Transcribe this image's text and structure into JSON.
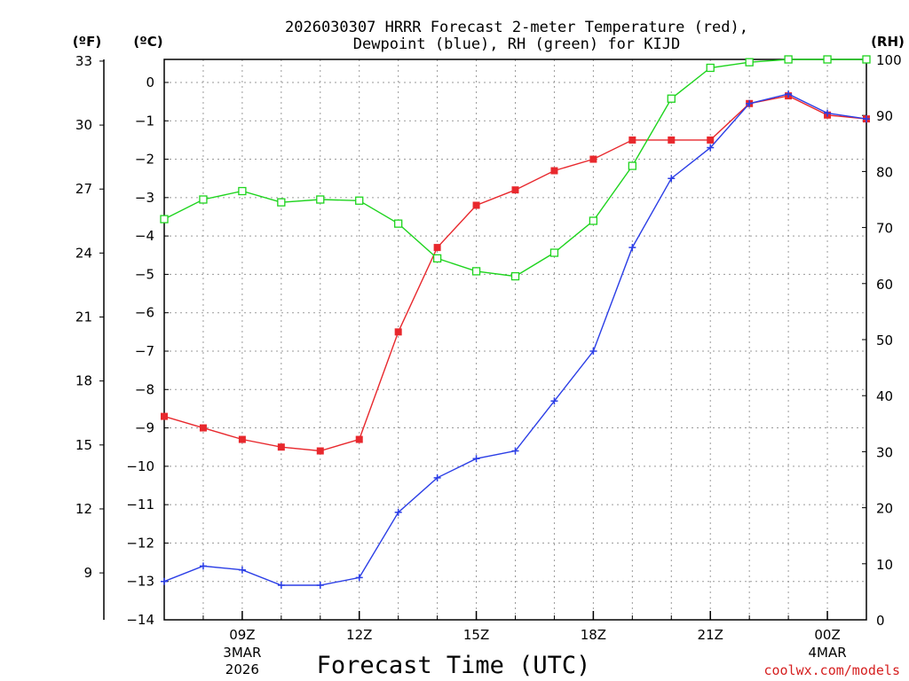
{
  "chart_data": {
    "type": "line",
    "title_line1": "2026030307 HRRR Forecast 2-meter Temperature (red),",
    "title_line2": "Dewpoint (blue), RH (green) for KIJD",
    "xlabel": "Forecast Time (UTC)",
    "credit": "coolwx.com/models",
    "units": {
      "fahrenheit": "(ºF)",
      "celsius": "(ºC)",
      "rh": "(RH)"
    },
    "x_range": [
      7,
      25
    ],
    "celsius_range": [
      -14,
      0.6
    ],
    "rh_range": [
      0,
      100
    ],
    "x_ticks": [
      {
        "x": 9,
        "label": "09Z",
        "sub1": "3MAR",
        "sub2": "2026"
      },
      {
        "x": 12,
        "label": "12Z",
        "sub1": "",
        "sub2": ""
      },
      {
        "x": 15,
        "label": "15Z",
        "sub1": "",
        "sub2": ""
      },
      {
        "x": 18,
        "label": "18Z",
        "sub1": "",
        "sub2": ""
      },
      {
        "x": 21,
        "label": "21Z",
        "sub1": "",
        "sub2": ""
      },
      {
        "x": 24,
        "label": "00Z",
        "sub1": "4MAR",
        "sub2": ""
      }
    ],
    "celsius_ticks": [
      {
        "v": 0,
        "label": "0"
      },
      {
        "v": -1,
        "label": "−1"
      },
      {
        "v": -2,
        "label": "−2"
      },
      {
        "v": -3,
        "label": "−3"
      },
      {
        "v": -4,
        "label": "−4"
      },
      {
        "v": -5,
        "label": "−5"
      },
      {
        "v": -6,
        "label": "−6"
      },
      {
        "v": -7,
        "label": "−7"
      },
      {
        "v": -8,
        "label": "−8"
      },
      {
        "v": -9,
        "label": "−9"
      },
      {
        "v": -10,
        "label": "−10"
      },
      {
        "v": -11,
        "label": "−11"
      },
      {
        "v": -12,
        "label": "−12"
      },
      {
        "v": -13,
        "label": "−13"
      },
      {
        "v": -14,
        "label": "−14"
      }
    ],
    "fahrenheit_ticks": [
      {
        "v": 33,
        "label": "33"
      },
      {
        "v": 30,
        "label": "30"
      },
      {
        "v": 27,
        "label": "27"
      },
      {
        "v": 24,
        "label": "24"
      },
      {
        "v": 21,
        "label": "21"
      },
      {
        "v": 18,
        "label": "18"
      },
      {
        "v": 15,
        "label": "15"
      },
      {
        "v": 12,
        "label": "12"
      },
      {
        "v": 9,
        "label": "9"
      }
    ],
    "rh_ticks": [
      {
        "v": 100,
        "label": "100"
      },
      {
        "v": 90,
        "label": "90"
      },
      {
        "v": 80,
        "label": "80"
      },
      {
        "v": 70,
        "label": "70"
      },
      {
        "v": 60,
        "label": "60"
      },
      {
        "v": 50,
        "label": "50"
      },
      {
        "v": 40,
        "label": "40"
      },
      {
        "v": 30,
        "label": "30"
      },
      {
        "v": 20,
        "label": "20"
      },
      {
        "v": 10,
        "label": "10"
      },
      {
        "v": 0,
        "label": "0"
      }
    ],
    "x": [
      7,
      8,
      9,
      10,
      11,
      12,
      13,
      14,
      15,
      16,
      17,
      18,
      19,
      20,
      21,
      22,
      23,
      24,
      25
    ],
    "series": [
      {
        "name": "Temperature",
        "axis": "celsius",
        "color": "#e8282d",
        "marker": "filled-square",
        "values": [
          -8.7,
          -9.0,
          -9.3,
          -9.5,
          -9.6,
          -9.3,
          -6.5,
          -4.3,
          -3.2,
          -2.8,
          -2.3,
          -2.0,
          -1.5,
          -1.5,
          -1.5,
          -0.55,
          -0.35,
          -0.85,
          -0.95
        ]
      },
      {
        "name": "Dewpoint",
        "axis": "celsius",
        "color": "#2b3ee6",
        "marker": "plus",
        "values": [
          -13.0,
          -12.6,
          -12.7,
          -13.1,
          -13.1,
          -12.9,
          -11.2,
          -10.3,
          -9.8,
          -9.6,
          -8.3,
          -7.0,
          -4.3,
          -2.5,
          -1.7,
          -0.55,
          -0.3,
          -0.8,
          -0.95
        ]
      },
      {
        "name": "RH",
        "axis": "rh",
        "color": "#1ed41e",
        "marker": "open-square",
        "values": [
          71.5,
          75.0,
          76.5,
          74.5,
          75.0,
          74.8,
          70.7,
          64.5,
          62.2,
          61.3,
          65.5,
          71.2,
          81.0,
          93.0,
          98.5,
          99.5,
          100,
          100,
          100
        ]
      }
    ]
  }
}
